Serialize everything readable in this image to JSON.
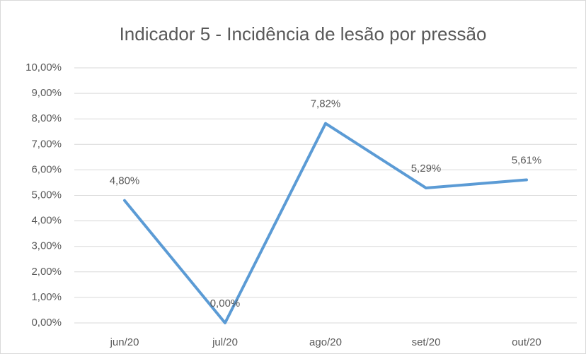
{
  "chart_data": {
    "type": "line",
    "title": "Indicador 5 - Incidência de lesão por pressão",
    "categories": [
      "jun/20",
      "jul/20",
      "ago/20",
      "set/20",
      "out/20"
    ],
    "series": [
      {
        "name": "Indicador 5",
        "color": "#5b9bd5",
        "values": [
          4.8,
          0.0,
          7.82,
          5.29,
          5.61
        ],
        "value_labels": [
          "4,80%",
          "0,00%",
          "7,82%",
          "5,29%",
          "5,61%"
        ]
      }
    ],
    "ylim": [
      0,
      10
    ],
    "yticks": [
      {
        "value": 0,
        "label": "0,00%"
      },
      {
        "value": 1,
        "label": "1,00%"
      },
      {
        "value": 2,
        "label": "2,00%"
      },
      {
        "value": 3,
        "label": "3,00%"
      },
      {
        "value": 4,
        "label": "4,00%"
      },
      {
        "value": 5,
        "label": "5,00%"
      },
      {
        "value": 6,
        "label": "6,00%"
      },
      {
        "value": 7,
        "label": "7,00%"
      },
      {
        "value": 8,
        "label": "8,00%"
      },
      {
        "value": 9,
        "label": "9,00%"
      },
      {
        "value": 10,
        "label": "10,00%"
      }
    ],
    "grid": true
  }
}
